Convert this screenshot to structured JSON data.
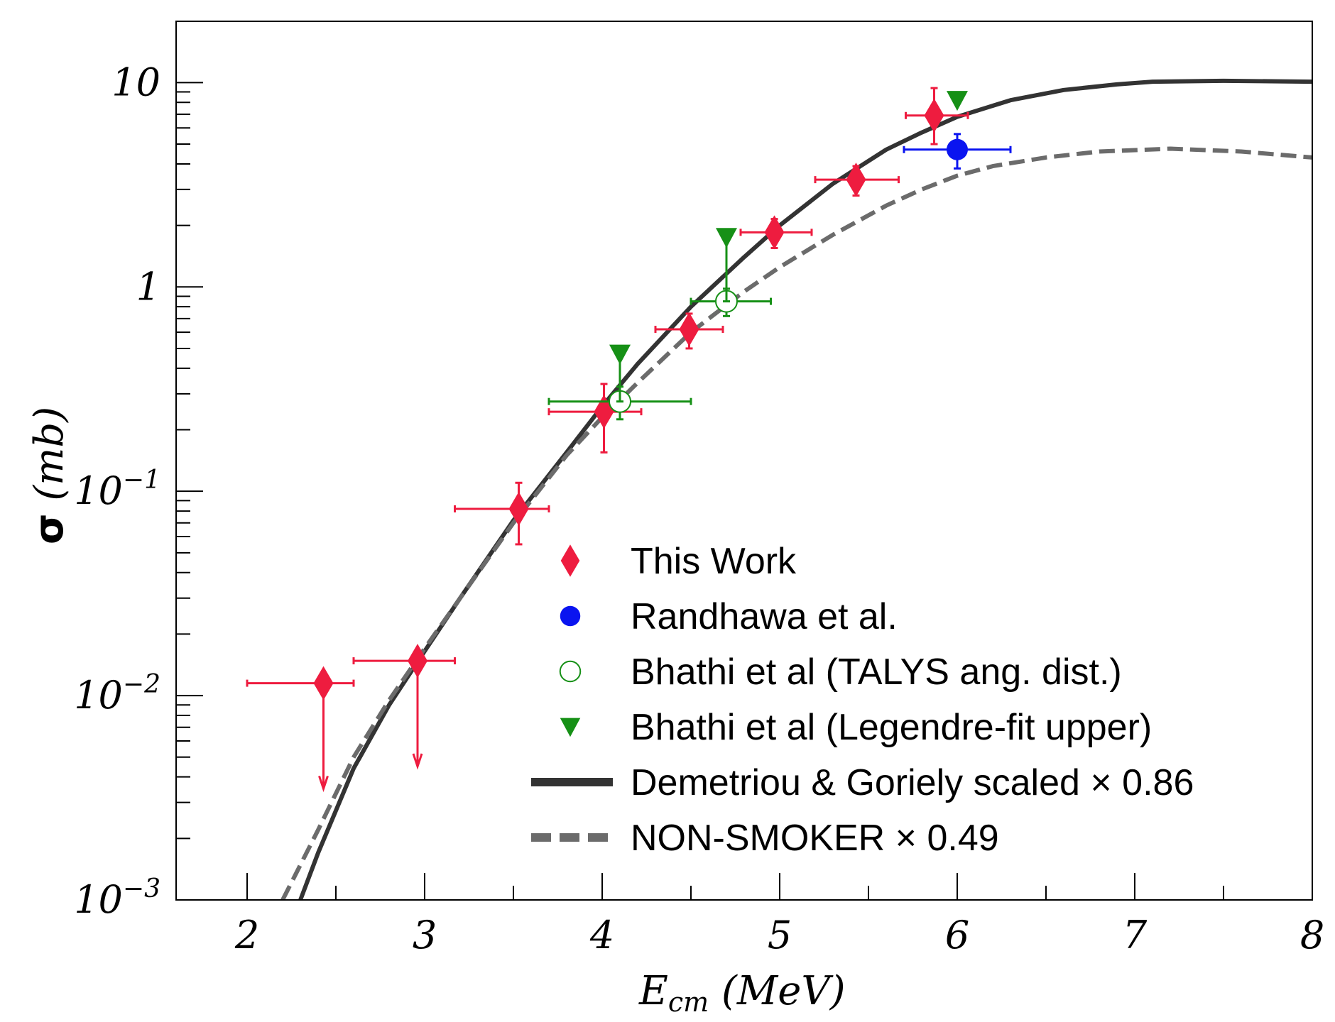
{
  "chart_data": {
    "type": "scatter",
    "xlabel": {
      "main": "E",
      "sub": "cm",
      "rest": " (MeV)"
    },
    "ylabel": {
      "symbol": "σ",
      "rest": " (mb)"
    },
    "x_range": [
      1.6,
      8.0
    ],
    "y_range_log10": [
      -3,
      1.3
    ],
    "x_ticks": [
      {
        "value": 2,
        "label": "2"
      },
      {
        "value": 3,
        "label": "3"
      },
      {
        "value": 4,
        "label": "4"
      },
      {
        "value": 5,
        "label": "5"
      },
      {
        "value": 6,
        "label": "6"
      },
      {
        "value": 7,
        "label": "7"
      },
      {
        "value": 8,
        "label": "8"
      }
    ],
    "y_ticks": [
      {
        "value": 10,
        "base": "10",
        "exp": ""
      },
      {
        "value": 1,
        "base": "1",
        "exp": ""
      },
      {
        "value": 0.1,
        "base": "10",
        "exp": "−1"
      },
      {
        "value": 0.01,
        "base": "10",
        "exp": "−2"
      },
      {
        "value": 0.001,
        "base": "10",
        "exp": "−3"
      }
    ],
    "series": [
      {
        "name": "This Work",
        "marker": "diamond",
        "color": "#ee1c3f",
        "points": [
          {
            "x": 2.43,
            "y": 0.0115,
            "xlo": 2.0,
            "xhi": 2.6,
            "ylo": 0.0035,
            "yhi": 0.0115,
            "upper_limit": true
          },
          {
            "x": 2.96,
            "y": 0.0148,
            "xlo": 2.6,
            "xhi": 3.17,
            "ylo": 0.0045,
            "yhi": 0.0148,
            "upper_limit": true
          },
          {
            "x": 3.53,
            "y": 0.082,
            "xlo": 3.17,
            "xhi": 3.7,
            "ylo": 0.055,
            "yhi": 0.11
          },
          {
            "x": 4.01,
            "y": 0.245,
            "xlo": 3.7,
            "xhi": 4.22,
            "ylo": 0.155,
            "yhi": 0.335
          },
          {
            "x": 4.49,
            "y": 0.62,
            "xlo": 4.3,
            "xhi": 4.68,
            "ylo": 0.5,
            "yhi": 0.74
          },
          {
            "x": 4.97,
            "y": 1.85,
            "xlo": 4.78,
            "xhi": 5.18,
            "ylo": 1.55,
            "yhi": 2.15
          },
          {
            "x": 5.43,
            "y": 3.35,
            "xlo": 5.2,
            "xhi": 5.67,
            "ylo": 2.8,
            "yhi": 3.9
          },
          {
            "x": 5.87,
            "y": 6.9,
            "xlo": 5.71,
            "xhi": 6.06,
            "ylo": 5.0,
            "yhi": 9.4
          }
        ]
      },
      {
        "name": "Randhawa et al.",
        "marker": "circle-filled",
        "color": "#0a14f0",
        "points": [
          {
            "x": 6.0,
            "y": 4.7,
            "xlo": 5.7,
            "xhi": 6.3,
            "ylo": 3.8,
            "yhi": 5.6
          }
        ]
      },
      {
        "name": "Bhathi et al (TALYS ang. dist.)",
        "marker": "circle-open",
        "color": "#169016",
        "points": [
          {
            "x": 4.1,
            "y": 0.275,
            "xlo": 3.7,
            "xhi": 4.5,
            "ylo": 0.225,
            "yhi": 0.325
          },
          {
            "x": 4.7,
            "y": 0.85,
            "xlo": 4.5,
            "xhi": 4.95,
            "ylo": 0.72,
            "yhi": 0.98
          }
        ]
      },
      {
        "name": "Bhathi et al (Legendre-fit upper)",
        "marker": "triangle-down",
        "color": "#169016",
        "points": [
          {
            "x": 4.1,
            "y": 0.47,
            "ylo": 0.275,
            "yhi": 0.47
          },
          {
            "x": 4.7,
            "y": 1.75,
            "ylo": 0.85,
            "yhi": 1.75
          },
          {
            "x": 6.0,
            "y": 8.2
          }
        ]
      },
      {
        "name": "Demetriou & Goriely scaled",
        "factor": "0.86",
        "line": "solid",
        "color": "#333333",
        "x": [
          2.3,
          2.4,
          2.6,
          2.8,
          3.0,
          3.2,
          3.5,
          3.8,
          4.0,
          4.2,
          4.5,
          4.8,
          5.0,
          5.3,
          5.6,
          5.8,
          6.0,
          6.3,
          6.6,
          6.9,
          7.1,
          7.5,
          8.0
        ],
        "y": [
          0.001,
          0.0017,
          0.0044,
          0.009,
          0.0165,
          0.03,
          0.072,
          0.155,
          0.26,
          0.42,
          0.8,
          1.4,
          2.0,
          3.2,
          4.7,
          5.7,
          6.8,
          8.2,
          9.2,
          9.8,
          10.1,
          10.2,
          10.1
        ]
      },
      {
        "name": "NON-SMOKER",
        "factor": "0.49",
        "line": "dashed",
        "color": "#6b6b6b",
        "x": [
          2.2,
          2.4,
          2.6,
          2.8,
          3.0,
          3.2,
          3.5,
          3.8,
          4.0,
          4.2,
          4.5,
          4.8,
          5.0,
          5.3,
          5.6,
          5.8,
          6.0,
          6.2,
          6.5,
          6.8,
          7.2,
          7.6,
          8.0
        ],
        "y": [
          0.001,
          0.0022,
          0.005,
          0.0095,
          0.017,
          0.03,
          0.07,
          0.15,
          0.23,
          0.34,
          0.6,
          0.95,
          1.25,
          1.8,
          2.5,
          3.0,
          3.5,
          3.9,
          4.3,
          4.6,
          4.75,
          4.6,
          4.3
        ]
      }
    ]
  }
}
